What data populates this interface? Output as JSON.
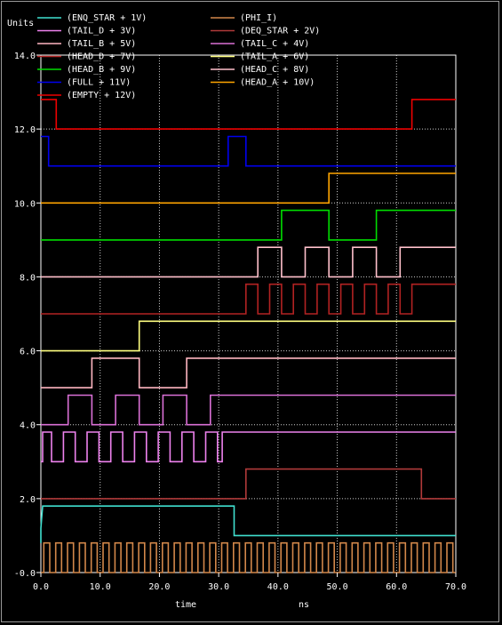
{
  "chart_data": {
    "type": "line",
    "ylabel": "Units",
    "xlabel": "time",
    "xunit": "ns",
    "xlim": [
      0,
      70
    ],
    "ylim": [
      0,
      14
    ],
    "xticks": [
      0,
      10,
      20,
      30,
      40,
      50,
      60,
      70
    ],
    "xtick_labels": [
      "0.0",
      "10.0",
      "20.0",
      "30.0",
      "40.0",
      "50.0",
      "60.0",
      "70.0"
    ],
    "yticks": [
      0,
      2,
      4,
      6,
      8,
      10,
      12,
      14
    ],
    "ytick_labels": [
      "-0.0",
      "2.0",
      "4.0",
      "6.0",
      "8.0",
      "10.0",
      "12.0",
      "14.0"
    ],
    "grid": true,
    "legend_placement": "top",
    "series": [
      {
        "name": "(ENQ_STAR + 1V)",
        "color": "#40e0d0",
        "x": [
          0,
          0,
          0.3,
          32.6,
          32.6,
          70
        ],
        "y": [
          0.8,
          1.2,
          1.8,
          1.8,
          1.0,
          1.0
        ]
      },
      {
        "name": "(PHI_I)",
        "color": "#d2874a",
        "clock": {
          "period": 2.0,
          "low": 0.0,
          "high": 0.8,
          "start": 0.0,
          "end": 70
        }
      },
      {
        "name": "(TAIL_D + 3V)",
        "color": "#ee82ee",
        "x": [
          0,
          0.3,
          0.3,
          1.8,
          1.8,
          3.8,
          3.8,
          5.8,
          5.8,
          7.8,
          7.8,
          9.8,
          9.8,
          11.8,
          11.8,
          13.8,
          13.8,
          15.8,
          15.8,
          17.8,
          17.8,
          19.8,
          19.8,
          21.8,
          21.8,
          23.8,
          23.8,
          25.8,
          25.8,
          27.8,
          27.8,
          29.8,
          29.8,
          30.6,
          30.6,
          70
        ],
        "y": [
          3.0,
          3.0,
          3.8,
          3.8,
          3.0,
          3.0,
          3.8,
          3.8,
          3.0,
          3.0,
          3.8,
          3.8,
          3.0,
          3.0,
          3.8,
          3.8,
          3.0,
          3.0,
          3.8,
          3.8,
          3.0,
          3.0,
          3.8,
          3.8,
          3.0,
          3.0,
          3.8,
          3.8,
          3.0,
          3.0,
          3.8,
          3.8,
          3.0,
          3.0,
          3.8,
          3.8
        ]
      },
      {
        "name": "(DEQ_STAR + 2V)",
        "color": "#b03a3a",
        "x": [
          0,
          34.6,
          34.6,
          64.2,
          64.2,
          70
        ],
        "y": [
          2.0,
          2.0,
          2.8,
          2.8,
          2.0,
          2.0
        ]
      },
      {
        "name": "(TAIL_B + 5V)",
        "color": "#ffb6c1",
        "x": [
          0,
          8.6,
          8.6,
          16.6,
          16.6,
          24.6,
          24.6,
          70
        ],
        "y": [
          5.0,
          5.0,
          5.8,
          5.8,
          5.0,
          5.0,
          5.8,
          5.8
        ]
      },
      {
        "name": "(TAIL_C + 4V)",
        "color": "#da70d6",
        "x": [
          0,
          4.6,
          4.6,
          8.6,
          8.6,
          12.6,
          12.6,
          16.6,
          16.6,
          20.6,
          20.6,
          24.6,
          24.6,
          28.6,
          28.6,
          70
        ],
        "y": [
          4.0,
          4.0,
          4.8,
          4.8,
          4.0,
          4.0,
          4.8,
          4.8,
          4.0,
          4.0,
          4.8,
          4.8,
          4.0,
          4.0,
          4.8,
          4.8
        ]
      },
      {
        "name": "(HEAD_D + 7V)",
        "color": "#b22222",
        "x": [
          0,
          34.6,
          34.6,
          36.6,
          36.6,
          38.6,
          38.6,
          40.6,
          40.6,
          42.6,
          42.6,
          44.6,
          44.6,
          46.6,
          46.6,
          48.6,
          48.6,
          50.6,
          50.6,
          52.6,
          52.6,
          54.6,
          54.6,
          56.6,
          56.6,
          58.6,
          58.6,
          60.6,
          60.6,
          62.6,
          62.6,
          70
        ],
        "y": [
          7.0,
          7.0,
          7.8,
          7.8,
          7.0,
          7.0,
          7.8,
          7.8,
          7.0,
          7.0,
          7.8,
          7.8,
          7.0,
          7.0,
          7.8,
          7.8,
          7.0,
          7.0,
          7.8,
          7.8,
          7.0,
          7.0,
          7.8,
          7.8,
          7.0,
          7.0,
          7.8,
          7.8,
          7.0,
          7.0,
          7.8,
          7.8
        ]
      },
      {
        "name": "(TAIL_A + 6V)",
        "color": "#ffff80",
        "x": [
          0,
          16.6,
          16.6,
          70
        ],
        "y": [
          6.0,
          6.0,
          6.8,
          6.8
        ]
      },
      {
        "name": "(HEAD_B + 9V)",
        "color": "#00dd00",
        "x": [
          0,
          40.6,
          40.6,
          48.6,
          48.6,
          56.6,
          56.6,
          70
        ],
        "y": [
          9.0,
          9.0,
          9.8,
          9.8,
          9.0,
          9.0,
          9.8,
          9.8
        ]
      },
      {
        "name": "(HEAD_C + 8V)",
        "color": "#ffc0cb",
        "x": [
          0,
          36.6,
          36.6,
          40.6,
          40.6,
          44.6,
          44.6,
          48.6,
          48.6,
          52.6,
          52.6,
          56.6,
          56.6,
          60.6,
          60.6,
          70
        ],
        "y": [
          8.0,
          8.0,
          8.8,
          8.8,
          8.0,
          8.0,
          8.8,
          8.8,
          8.0,
          8.0,
          8.8,
          8.8,
          8.0,
          8.0,
          8.8,
          8.8
        ]
      },
      {
        "name": "(FULL + 11V)",
        "color": "#0000ee",
        "x": [
          0,
          1.3,
          1.3,
          31.6,
          31.6,
          34.6,
          34.6,
          36.6,
          36.6,
          40.6,
          40.6,
          70
        ],
        "y": [
          11.8,
          11.8,
          11.0,
          11.0,
          11.8,
          11.8,
          11.0,
          11.0,
          11.0,
          11.0,
          11.0,
          11.0
        ]
      },
      {
        "name": "(HEAD_A + 10V)",
        "color": "#ffa500",
        "x": [
          0,
          48.6,
          48.6,
          70
        ],
        "y": [
          10.0,
          10.0,
          10.8,
          10.8
        ]
      },
      {
        "name": "(EMPTY + 12V)",
        "color": "#ee0000",
        "x": [
          0,
          2.6,
          2.6,
          62.6,
          62.6,
          70
        ],
        "y": [
          12.8,
          12.8,
          12.0,
          12.0,
          12.8,
          12.8
        ]
      }
    ]
  }
}
